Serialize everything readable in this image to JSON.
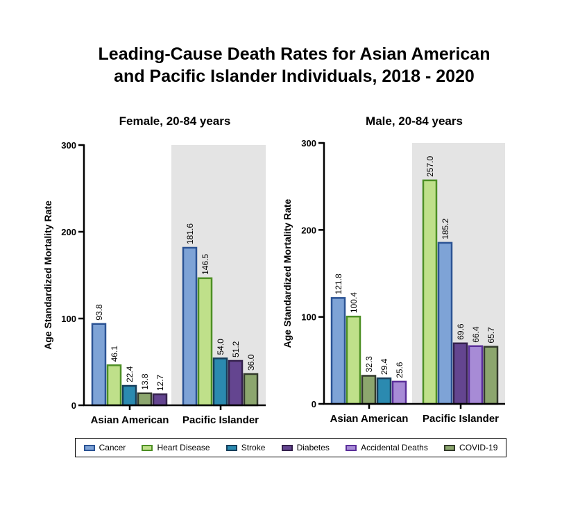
{
  "title_line1": "Leading-Cause Death Rates for Asian American",
  "title_line2": "and Pacific Islander Individuals, 2018 - 2020",
  "legend": [
    {
      "name": "Cancer",
      "fill": "#7ea3d6",
      "stroke": "#2b5394"
    },
    {
      "name": "Heart Disease",
      "fill": "#bfe08a",
      "stroke": "#4d8f24"
    },
    {
      "name": "Stroke",
      "fill": "#2b8ab0",
      "stroke": "#163e5a"
    },
    {
      "name": "Diabetes",
      "fill": "#644590",
      "stroke": "#35224d"
    },
    {
      "name": "Accidental Deaths",
      "fill": "#a78bd6",
      "stroke": "#5b2f9a"
    },
    {
      "name": "COVID-19",
      "fill": "#8ca66e",
      "stroke": "#333a2c"
    }
  ],
  "chart_data": [
    {
      "type": "bar",
      "title": "Female, 20-84 years",
      "ylabel": "Age  Standardized  Mortality  Rate",
      "ylim": [
        0,
        300
      ],
      "yticks": [
        0,
        100,
        200,
        300
      ],
      "categories": [
        "Asian American",
        "Pacific Islander"
      ],
      "groups": [
        {
          "category": "Asian American",
          "bars": [
            {
              "series": "Cancer",
              "value": 93.8,
              "label": "93.8"
            },
            {
              "series": "Heart Disease",
              "value": 46.1,
              "label": "46.1"
            },
            {
              "series": "Stroke",
              "value": 22.4,
              "label": "22.4"
            },
            {
              "series": "COVID-19",
              "value": 13.8,
              "label": "13.8"
            },
            {
              "series": "Diabetes",
              "value": 12.7,
              "label": "12.7"
            }
          ]
        },
        {
          "category": "Pacific Islander",
          "bars": [
            {
              "series": "Cancer",
              "value": 181.6,
              "label": "181.6"
            },
            {
              "series": "Heart Disease",
              "value": 146.5,
              "label": "146.5"
            },
            {
              "series": "Stroke",
              "value": 54.0,
              "label": "54.0"
            },
            {
              "series": "Diabetes",
              "value": 51.2,
              "label": "51.2"
            },
            {
              "series": "COVID-19",
              "value": 36.0,
              "label": "36.0"
            }
          ]
        }
      ]
    },
    {
      "type": "bar",
      "title": "Male, 20-84 years",
      "ylabel": "Age  Standardized  Mortality  Rate",
      "ylim": [
        0,
        300
      ],
      "yticks": [
        0,
        100,
        200,
        300
      ],
      "categories": [
        "Asian American",
        "Pacific Islander"
      ],
      "groups": [
        {
          "category": "Asian American",
          "bars": [
            {
              "series": "Cancer",
              "value": 121.8,
              "label": "121.8"
            },
            {
              "series": "Heart Disease",
              "value": 100.4,
              "label": "100.4"
            },
            {
              "series": "COVID-19",
              "value": 32.3,
              "label": "32.3"
            },
            {
              "series": "Stroke",
              "value": 29.4,
              "label": "29.4"
            },
            {
              "series": "Accidental Deaths",
              "value": 25.6,
              "label": "25.6"
            }
          ]
        },
        {
          "category": "Pacific Islander",
          "bars": [
            {
              "series": "Heart Disease",
              "value": 257.0,
              "label": "257.0"
            },
            {
              "series": "Cancer",
              "value": 185.2,
              "label": "185.2"
            },
            {
              "series": "Diabetes",
              "value": 69.6,
              "label": "69.6"
            },
            {
              "series": "Accidental Deaths",
              "value": 66.4,
              "label": "66.4"
            },
            {
              "series": "COVID-19",
              "value": 65.7,
              "label": "65.7"
            }
          ]
        }
      ]
    }
  ]
}
